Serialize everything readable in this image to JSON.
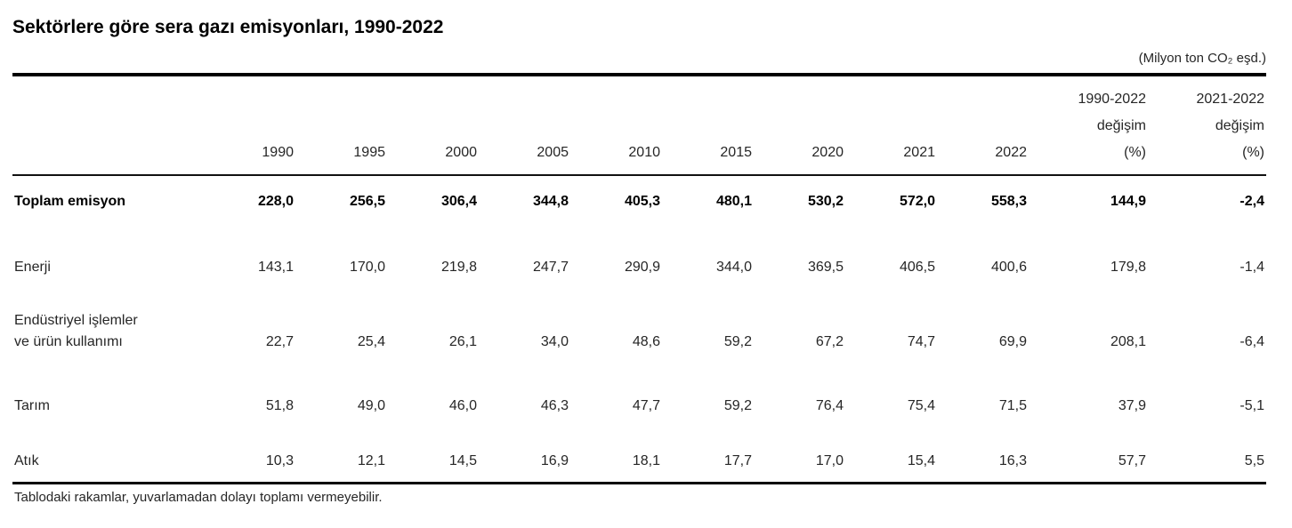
{
  "header": {
    "title": "Sektörlere göre sera gazı emisyonları, 1990-2022",
    "unit": "(Milyon ton CO₂ eşd.)"
  },
  "table": {
    "label_column_header": "",
    "year_columns": [
      "1990",
      "1995",
      "2000",
      "2005",
      "2010",
      "2015",
      "2020",
      "2021",
      "2022"
    ],
    "change_columns": [
      {
        "period": "1990-2022",
        "word": "değişim",
        "pct": "(%)"
      },
      {
        "period": "2021-2022",
        "word": "değişim",
        "pct": "(%)"
      }
    ],
    "rows": [
      {
        "bold": true,
        "label_lines": [
          "Toplam emisyon"
        ],
        "values": [
          "228,0",
          "256,5",
          "306,4",
          "344,8",
          "405,3",
          "480,1",
          "530,2",
          "572,0",
          "558,3",
          "144,9",
          "-2,4"
        ]
      },
      {
        "bold": false,
        "label_lines": [
          "Enerji"
        ],
        "values": [
          "143,1",
          "170,0",
          "219,8",
          "247,7",
          "290,9",
          "344,0",
          "369,5",
          "406,5",
          "400,6",
          "179,8",
          "-1,4"
        ]
      },
      {
        "bold": false,
        "label_lines": [
          "Endüstriyel işlemler",
          "ve ürün kullanımı"
        ],
        "values": [
          "22,7",
          "25,4",
          "26,1",
          "34,0",
          "48,6",
          "59,2",
          "67,2",
          "74,7",
          "69,9",
          "208,1",
          "-6,4"
        ]
      },
      {
        "bold": false,
        "label_lines": [
          "Tarım"
        ],
        "values": [
          "51,8",
          "49,0",
          "46,0",
          "46,3",
          "47,7",
          "59,2",
          "76,4",
          "75,4",
          "71,5",
          "37,9",
          "-5,1"
        ]
      },
      {
        "bold": false,
        "label_lines": [
          "Atık"
        ],
        "values": [
          "10,3",
          "12,1",
          "14,5",
          "16,9",
          "18,1",
          "17,7",
          "17,0",
          "15,4",
          "16,3",
          "57,7",
          "5,5"
        ]
      }
    ]
  },
  "footnote": "Tablodaki rakamlar, yuvarlamadan dolayı toplamı vermeyebilir.",
  "colors": {
    "text": "#262626",
    "title": "#000000",
    "rule": "#000000",
    "background": "#ffffff"
  },
  "chart_data": {
    "type": "table",
    "title": "Sektörlere göre sera gazı emisyonları, 1990-2022",
    "unit": "Milyon ton CO2 eşd.",
    "columns": [
      "1990",
      "1995",
      "2000",
      "2005",
      "2010",
      "2015",
      "2020",
      "2021",
      "2022",
      "1990-2022 değişim (%)",
      "2021-2022 değişim (%)"
    ],
    "rows": [
      {
        "sector": "Toplam emisyon",
        "values": [
          228.0,
          256.5,
          306.4,
          344.8,
          405.3,
          480.1,
          530.2,
          572.0,
          558.3,
          144.9,
          -2.4
        ]
      },
      {
        "sector": "Enerji",
        "values": [
          143.1,
          170.0,
          219.8,
          247.7,
          290.9,
          344.0,
          369.5,
          406.5,
          400.6,
          179.8,
          -1.4
        ]
      },
      {
        "sector": "Endüstriyel işlemler ve ürün kullanımı",
        "values": [
          22.7,
          25.4,
          26.1,
          34.0,
          48.6,
          59.2,
          67.2,
          74.7,
          69.9,
          208.1,
          -6.4
        ]
      },
      {
        "sector": "Tarım",
        "values": [
          51.8,
          49.0,
          46.0,
          46.3,
          47.7,
          59.2,
          76.4,
          75.4,
          71.5,
          37.9,
          -5.1
        ]
      },
      {
        "sector": "Atık",
        "values": [
          10.3,
          12.1,
          14.5,
          16.9,
          18.1,
          17.7,
          17.0,
          15.4,
          16.3,
          57.7,
          5.5
        ]
      }
    ],
    "footnote": "Tablodaki rakamlar, yuvarlamadan dolayı toplamı vermeyebilir."
  }
}
